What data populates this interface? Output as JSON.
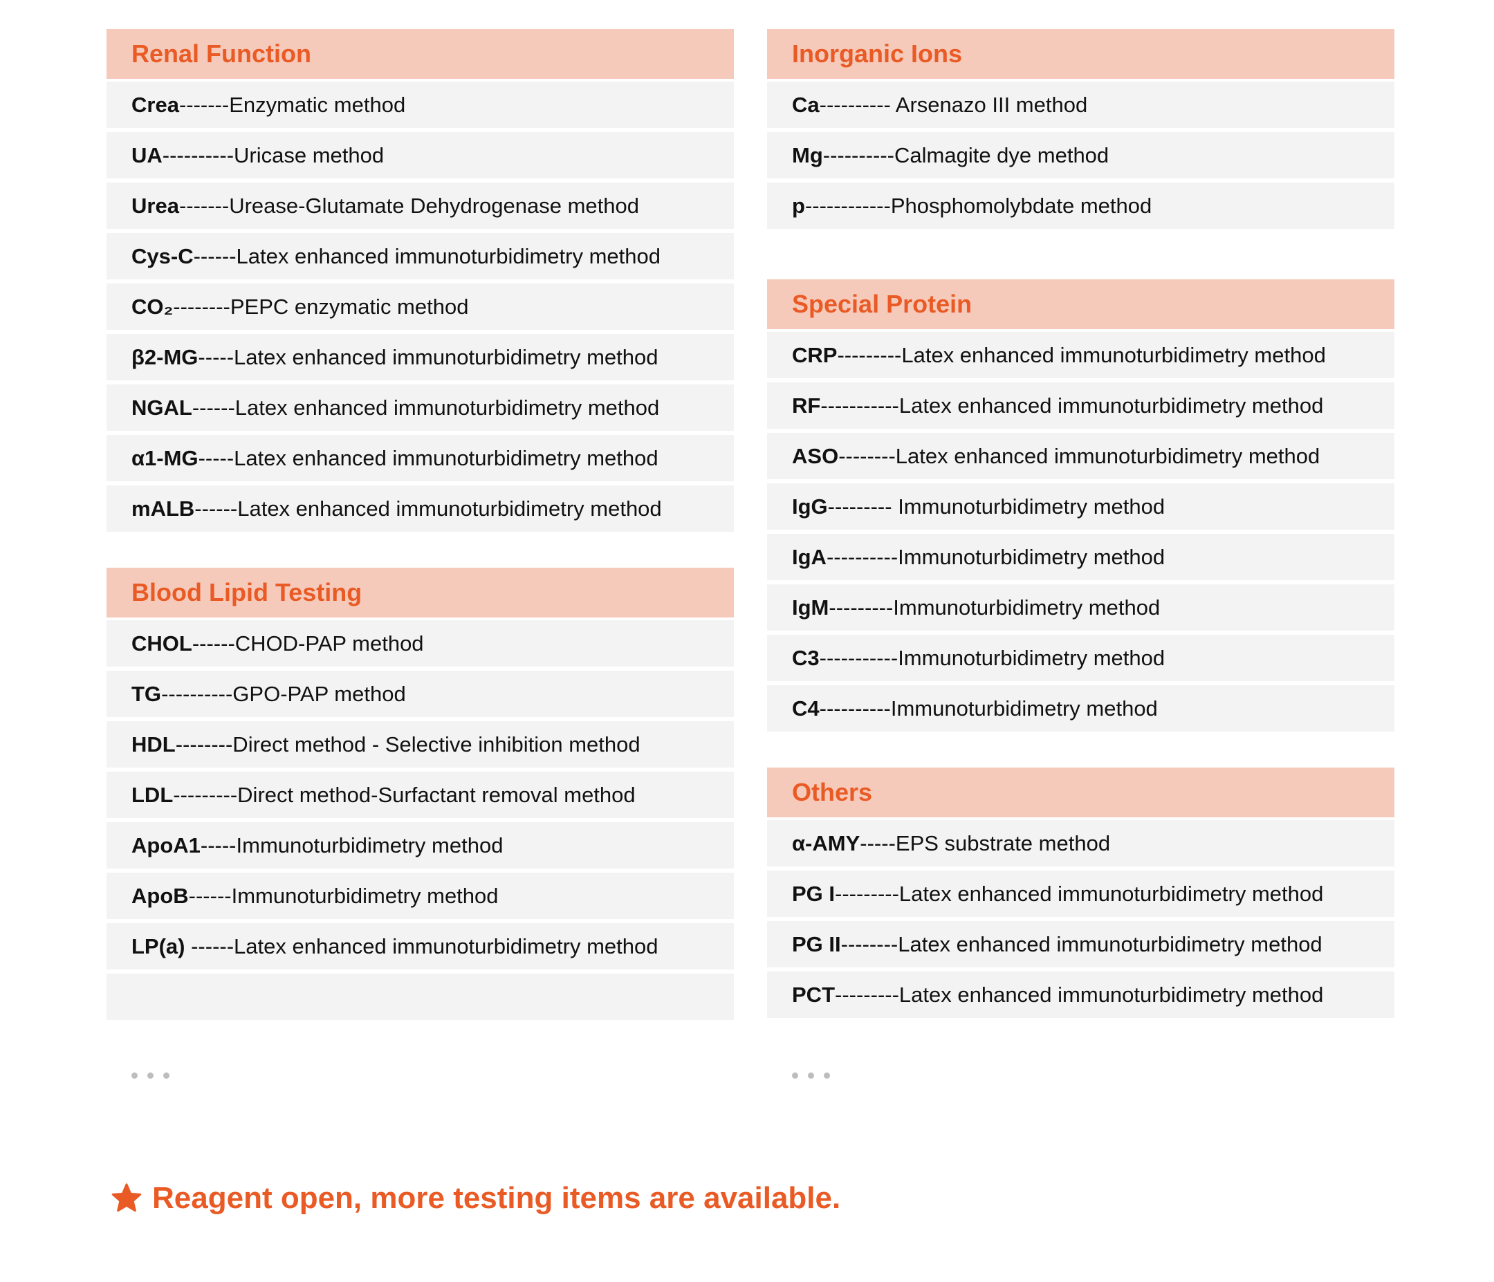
{
  "accent_color": "#e95a24",
  "header_bg": "#f6cabb",
  "row_bg": "#f3f3f3",
  "columns": [
    [
      {
        "title": "Renal Function",
        "items": [
          {
            "key": "Crea",
            "desc": "-------Enzymatic method"
          },
          {
            "key": "UA",
            "desc": "----------Uricase method"
          },
          {
            "key": "Urea",
            "desc": "-------Urease-Glutamate Dehydrogenase method"
          },
          {
            "key": "Cys-C",
            "desc": "------Latex enhanced immunoturbidimetry method"
          },
          {
            "key": "CO₂",
            "desc": "--------PEPC enzymatic method"
          },
          {
            "key": "β2-MG",
            "desc": "-----Latex enhanced immunoturbidimetry method"
          },
          {
            "key": "NGAL",
            "desc": "------Latex enhanced immunoturbidimetry method"
          },
          {
            "key": "α1-MG",
            "desc": "-----Latex enhanced immunoturbidimetry method"
          },
          {
            "key": "mALB",
            "desc": "------Latex enhanced immunoturbidimetry method"
          }
        ]
      },
      {
        "title": "Blood Lipid Testing",
        "items": [
          {
            "key": "CHOL",
            "desc": "------CHOD-PAP method"
          },
          {
            "key": "TG",
            "desc": "----------GPO-PAP method"
          },
          {
            "key": "HDL",
            "desc": "--------Direct method - Selective inhibition method"
          },
          {
            "key": "LDL",
            "desc": "---------Direct method-Surfactant removal method"
          },
          {
            "key": "ApoA1",
            "desc": "-----Immunoturbidimetry method"
          },
          {
            "key": "ApoB",
            "desc": "------Immunoturbidimetry method"
          },
          {
            "key": "LP(a)",
            "desc": " ------Latex enhanced immunoturbidimetry method"
          },
          {
            "key": "",
            "desc": ""
          }
        ]
      }
    ],
    [
      {
        "title": "Inorganic Ions",
        "items": [
          {
            "key": "Ca",
            "desc": "---------- Arsenazo III method"
          },
          {
            "key": "Mg",
            "desc": "----------Calmagite dye method"
          },
          {
            "key": "p",
            "desc": "------------Phosphomolybdate method"
          }
        ]
      },
      {
        "title": "Special Protein",
        "items": [
          {
            "key": "CRP",
            "desc": "---------Latex enhanced immunoturbidimetry method"
          },
          {
            "key": "RF",
            "desc": "-----------Latex enhanced immunoturbidimetry method"
          },
          {
            "key": "ASO",
            "desc": "--------Latex enhanced immunoturbidimetry method"
          },
          {
            "key": "IgG",
            "desc": "--------- Immunoturbidimetry method"
          },
          {
            "key": "IgA",
            "desc": "----------Immunoturbidimetry method"
          },
          {
            "key": "IgM",
            "desc": "---------Immunoturbidimetry method"
          },
          {
            "key": "C3",
            "desc": "-----------Immunoturbidimetry method"
          },
          {
            "key": "C4",
            "desc": "----------Immunoturbidimetry method"
          }
        ]
      },
      {
        "title": "Others",
        "items": [
          {
            "key": "α-AMY",
            "desc": "-----EPS substrate method"
          },
          {
            "key": "PG I",
            "desc": "---------Latex enhanced immunoturbidimetry method"
          },
          {
            "key": "PG II",
            "desc": "--------Latex enhanced immunoturbidimetry method"
          },
          {
            "key": "PCT",
            "desc": "---------Latex enhanced immunoturbidimetry method"
          }
        ]
      }
    ]
  ],
  "more_icon": "ellipsis-icon",
  "note": {
    "icon": "star-icon",
    "text": "Reagent open, more testing items are available."
  }
}
